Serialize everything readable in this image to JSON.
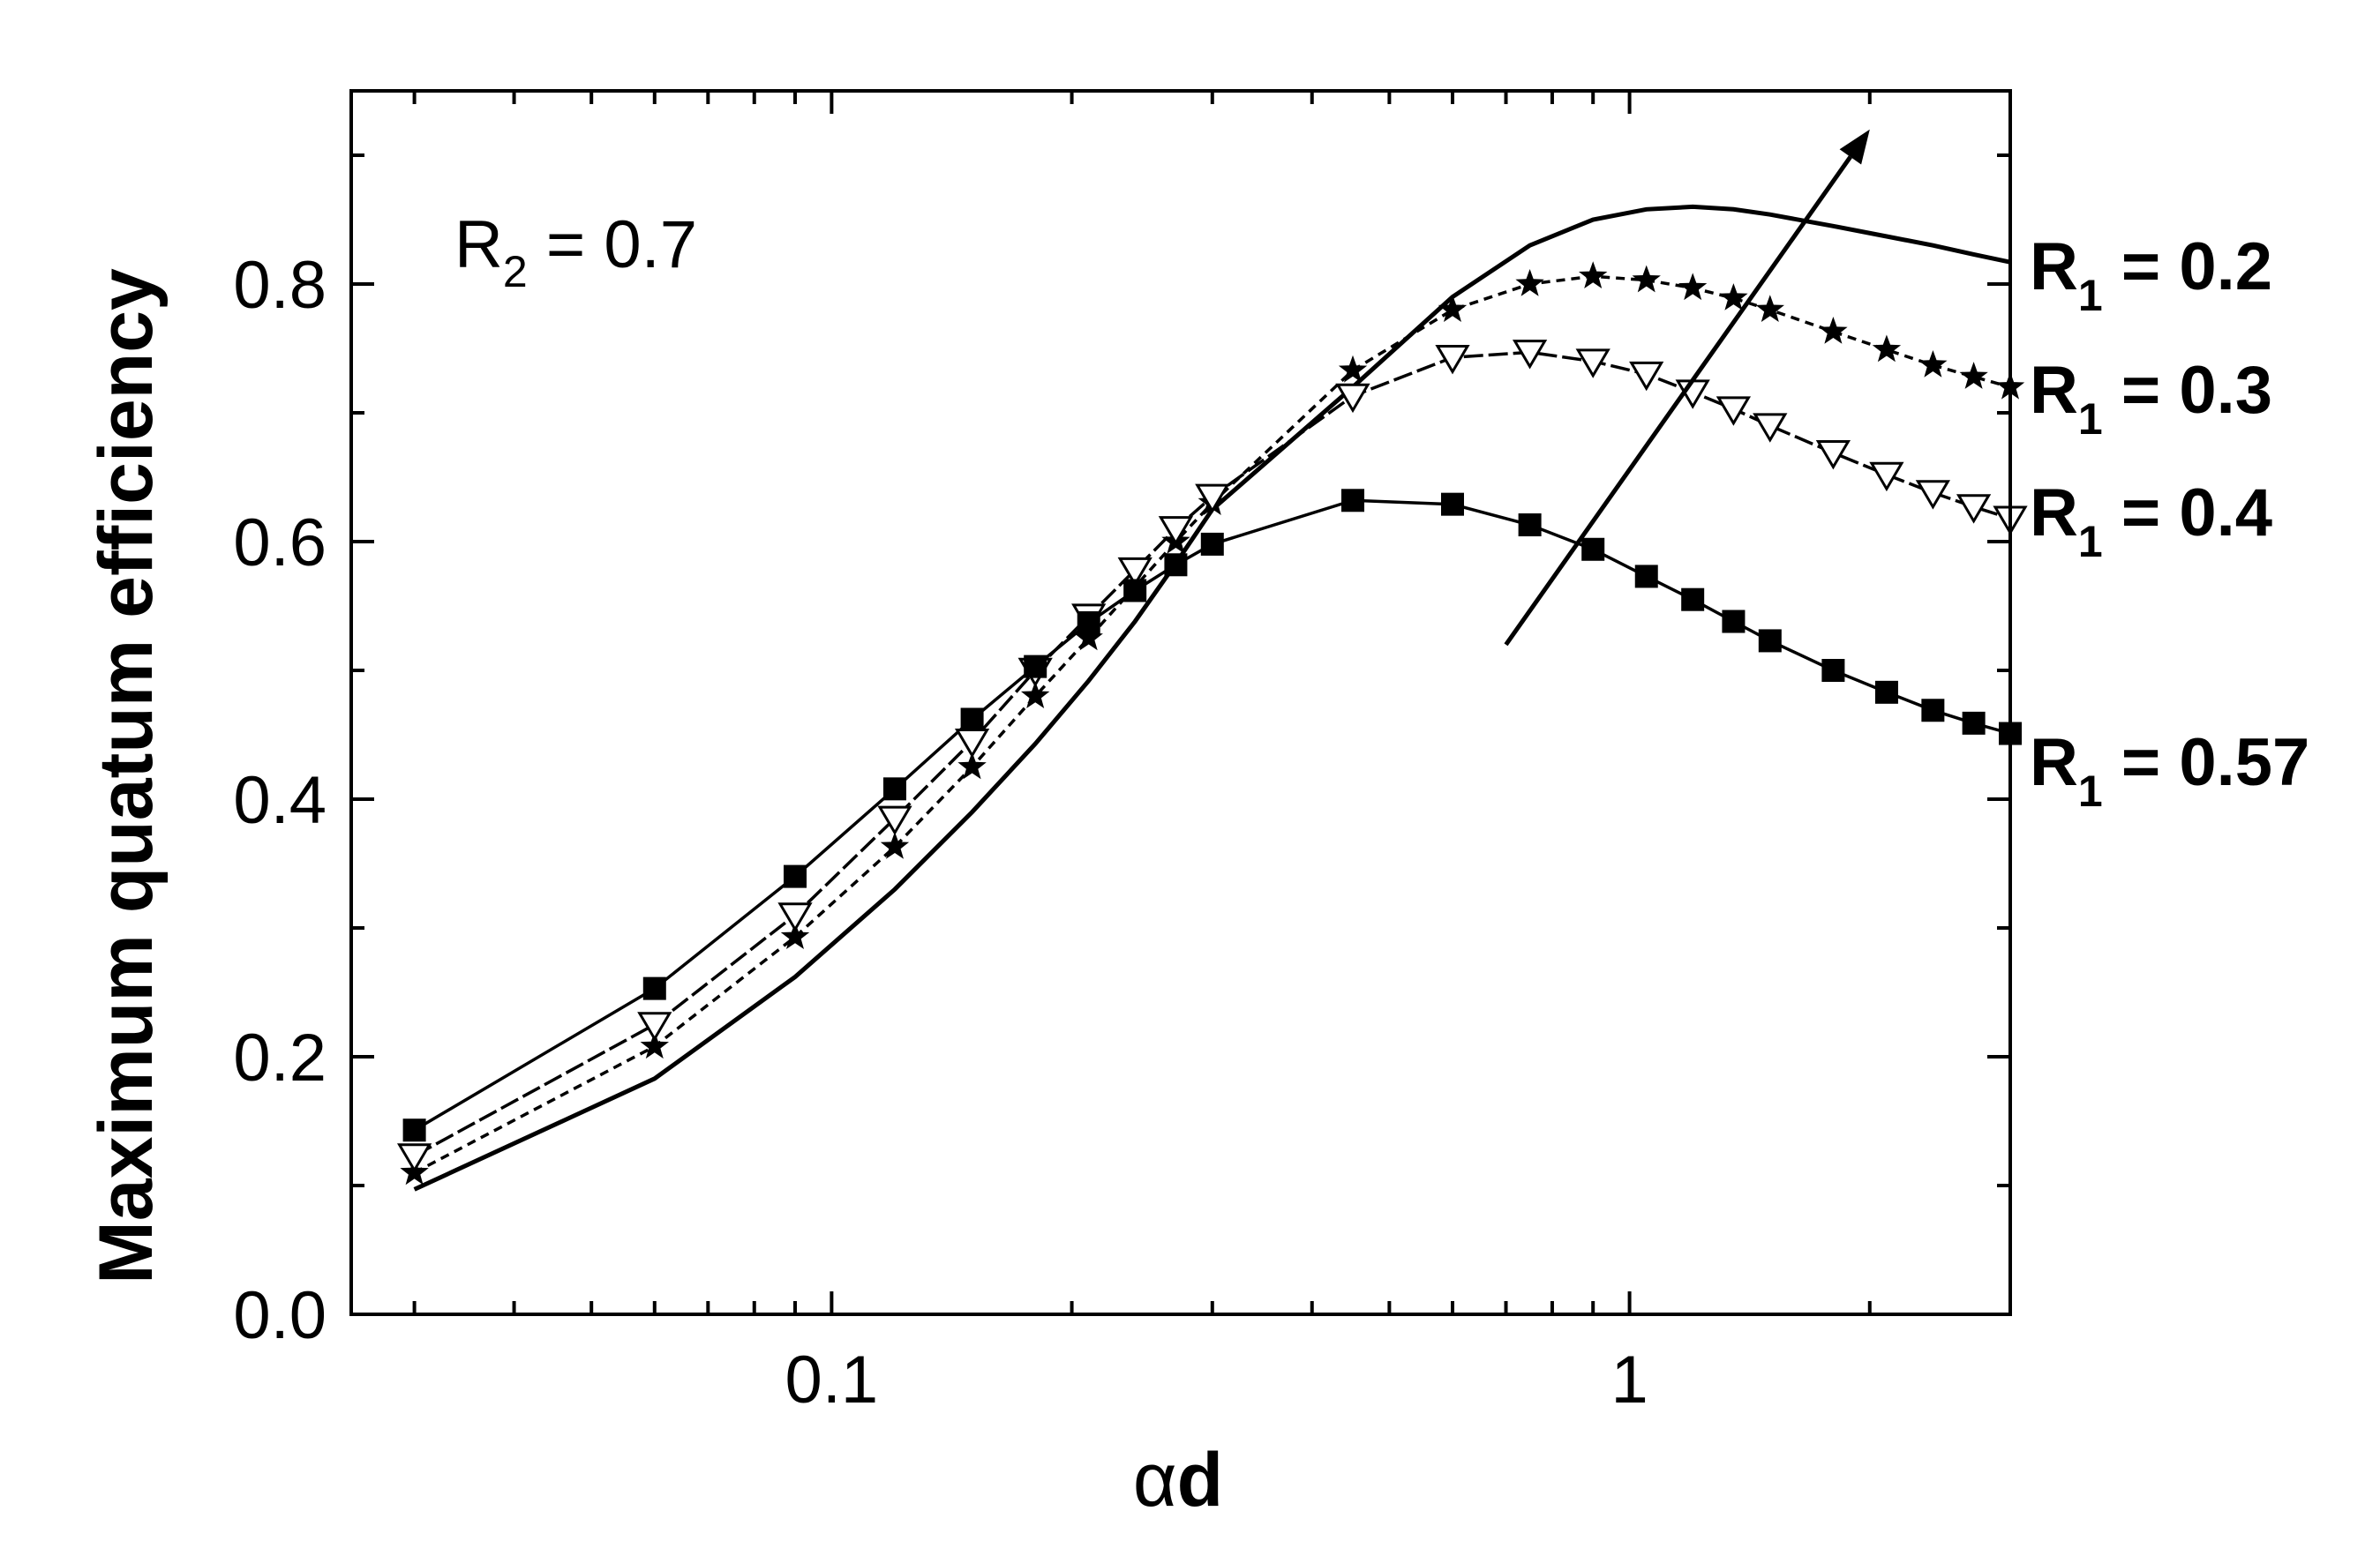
{
  "chart_data": {
    "type": "line",
    "title": "",
    "xlabel_symbol": "α",
    "xlabel_rest": "d",
    "ylabel": "Maximum quatum efficiency",
    "xscale": "log",
    "xlim": [
      0.025,
      3
    ],
    "ylim": [
      0,
      0.95
    ],
    "xticks": [
      {
        "value": 0.1,
        "label": "0.1"
      },
      {
        "value": 1,
        "label": "1"
      }
    ],
    "yticks": [
      {
        "value": 0.0,
        "label": "0.0"
      },
      {
        "value": 0.2,
        "label": "0.2"
      },
      {
        "value": 0.4,
        "label": "0.4"
      },
      {
        "value": 0.6,
        "label": "0.6"
      },
      {
        "value": 0.8,
        "label": "0.8"
      }
    ],
    "annotation": {
      "symbol": "R",
      "sub": "2",
      "rest": " = 0.7"
    },
    "arrow": {
      "from": [
        0.7,
        0.52
      ],
      "to": [
        2.0,
        0.92
      ]
    },
    "legend_placement": "right",
    "series": [
      {
        "name": "R1 = 0.2",
        "symbol": "R",
        "sub": "1",
        "value": " = 0.2",
        "marker": "none",
        "dash": "",
        "x": [
          0.03,
          0.06,
          0.09,
          0.12,
          0.15,
          0.18,
          0.21,
          0.24,
          0.27,
          0.3,
          0.45,
          0.6,
          0.75,
          0.9,
          1.05,
          1.2,
          1.35,
          1.5,
          1.8,
          2.1,
          2.4,
          2.7,
          3.0
        ],
        "values": [
          0.097,
          0.183,
          0.262,
          0.33,
          0.39,
          0.443,
          0.492,
          0.538,
          0.583,
          0.625,
          0.72,
          0.79,
          0.83,
          0.85,
          0.858,
          0.86,
          0.858,
          0.854,
          0.845,
          0.837,
          0.83,
          0.823,
          0.817
        ]
      },
      {
        "name": "R1 = 0.3",
        "symbol": "R",
        "sub": "1",
        "value": " = 0.3",
        "marker": "star",
        "dash": "10 7",
        "x": [
          0.03,
          0.06,
          0.09,
          0.12,
          0.15,
          0.18,
          0.21,
          0.24,
          0.27,
          0.3,
          0.45,
          0.6,
          0.75,
          0.9,
          1.05,
          1.2,
          1.35,
          1.5,
          1.8,
          2.1,
          2.4,
          2.7,
          3.0
        ],
        "values": [
          0.11,
          0.208,
          0.293,
          0.363,
          0.425,
          0.48,
          0.525,
          0.565,
          0.6,
          0.63,
          0.733,
          0.78,
          0.8,
          0.806,
          0.803,
          0.797,
          0.789,
          0.78,
          0.763,
          0.749,
          0.737,
          0.728,
          0.72
        ]
      },
      {
        "name": "R1 = 0.4",
        "symbol": "R",
        "sub": "1",
        "value": " = 0.4",
        "marker": "triangle-down",
        "dash": "22 6",
        "x": [
          0.03,
          0.06,
          0.09,
          0.12,
          0.15,
          0.18,
          0.21,
          0.24,
          0.27,
          0.3,
          0.45,
          0.6,
          0.75,
          0.9,
          1.05,
          1.2,
          1.35,
          1.5,
          1.8,
          2.1,
          2.4,
          2.7,
          3.0
        ],
        "values": [
          0.123,
          0.225,
          0.31,
          0.385,
          0.445,
          0.5,
          0.542,
          0.578,
          0.61,
          0.635,
          0.713,
          0.743,
          0.747,
          0.74,
          0.73,
          0.716,
          0.703,
          0.69,
          0.669,
          0.652,
          0.638,
          0.627,
          0.618
        ]
      },
      {
        "name": "R1 = 0.57",
        "symbol": "R",
        "sub": "1",
        "value": " = 0.57",
        "marker": "square",
        "dash": "",
        "x": [
          0.03,
          0.06,
          0.09,
          0.12,
          0.15,
          0.18,
          0.21,
          0.24,
          0.27,
          0.3,
          0.45,
          0.6,
          0.75,
          0.9,
          1.05,
          1.2,
          1.35,
          1.5,
          1.8,
          2.1,
          2.4,
          2.7,
          3.0
        ],
        "values": [
          0.143,
          0.253,
          0.34,
          0.408,
          0.462,
          0.503,
          0.537,
          0.562,
          0.582,
          0.598,
          0.632,
          0.629,
          0.613,
          0.594,
          0.573,
          0.555,
          0.538,
          0.523,
          0.5,
          0.483,
          0.469,
          0.459,
          0.451
        ]
      }
    ]
  }
}
